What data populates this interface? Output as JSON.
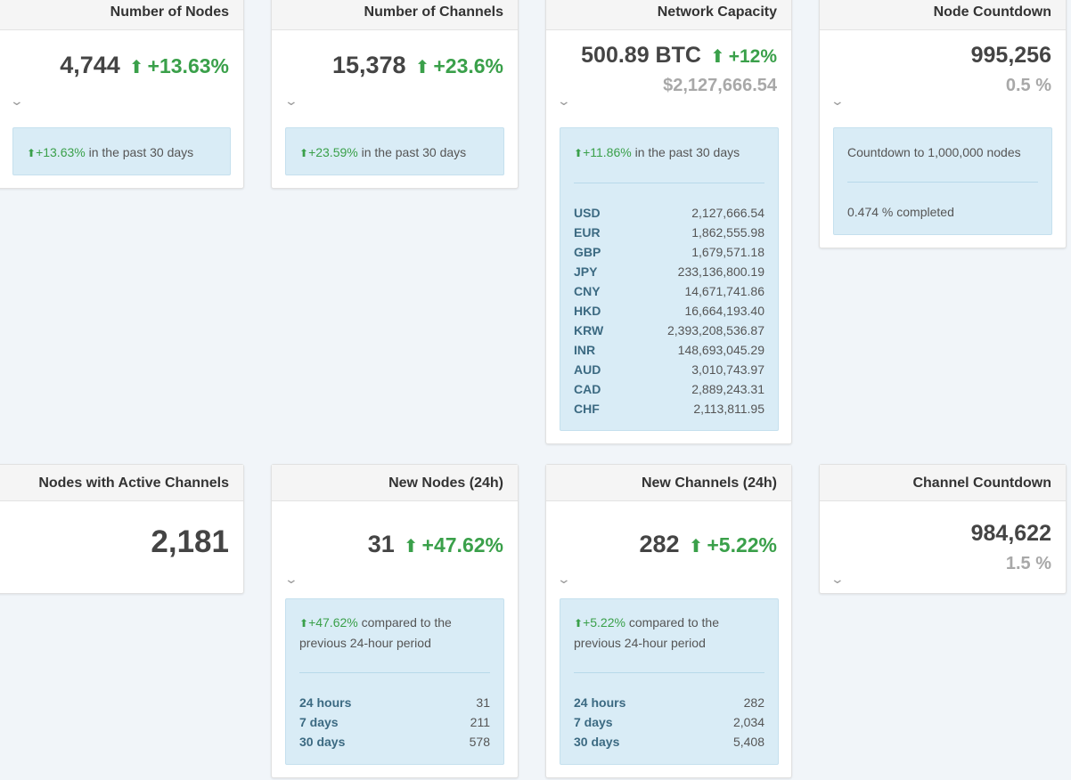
{
  "nodes": {
    "title": "Number of Nodes",
    "value": "4,744",
    "pct": "+13.63%",
    "info_pct": "+13.63%",
    "info_text": " in the past 30 days"
  },
  "channels": {
    "title": "Number of Channels",
    "value": "15,378",
    "pct": "+23.6%",
    "info_pct": "+23.59%",
    "info_text": " in the past 30 days"
  },
  "capacity": {
    "title": "Network Capacity",
    "value": "500.89 BTC",
    "pct": "+12%",
    "usd": "$2,127,666.54",
    "info_pct": "+11.86%",
    "info_text": " in the past 30 days",
    "currencies": [
      {
        "code": "USD",
        "value": "2,127,666.54"
      },
      {
        "code": "EUR",
        "value": "1,862,555.98"
      },
      {
        "code": "GBP",
        "value": "1,679,571.18"
      },
      {
        "code": "JPY",
        "value": "233,136,800.19"
      },
      {
        "code": "CNY",
        "value": "14,671,741.86"
      },
      {
        "code": "HKD",
        "value": "16,664,193.40"
      },
      {
        "code": "KRW",
        "value": "2,393,208,536.87"
      },
      {
        "code": "INR",
        "value": "148,693,045.29"
      },
      {
        "code": "AUD",
        "value": "3,010,743.97"
      },
      {
        "code": "CAD",
        "value": "2,889,243.31"
      },
      {
        "code": "CHF",
        "value": "2,113,811.95"
      }
    ]
  },
  "node_countdown": {
    "title": "Node Countdown",
    "value": "995,256",
    "pct": "0.5 %",
    "info_text": "Countdown to 1,000,000 nodes",
    "completed": "0.474 % completed"
  },
  "active_nodes": {
    "title": "Nodes with Active Channels",
    "value": "2,181"
  },
  "new_nodes": {
    "title": "New Nodes (24h)",
    "value": "31",
    "pct": "+47.62%",
    "info_pct": "+47.62%",
    "info_text1": " compared to the",
    "info_text2": "previous 24-hour period",
    "rows": [
      {
        "label": "24 hours",
        "value": "31"
      },
      {
        "label": "7 days",
        "value": "211"
      },
      {
        "label": "30 days",
        "value": "578"
      }
    ]
  },
  "new_channels": {
    "title": "New Channels (24h)",
    "value": "282",
    "pct": "+5.22%",
    "info_pct": "+5.22%",
    "info_text1": " compared to the",
    "info_text2": "previous 24-hour period",
    "rows": [
      {
        "label": "24 hours",
        "value": "282"
      },
      {
        "label": "7 days",
        "value": "2,034"
      },
      {
        "label": "30 days",
        "value": "5,408"
      }
    ]
  },
  "channel_countdown": {
    "title": "Channel Countdown",
    "value": "984,622",
    "pct": "1.5 %"
  },
  "colors": {
    "green": "#3aa04a",
    "info_bg": "#d9ecf6",
    "muted": "#a8a8a8"
  },
  "icons": {
    "up_arrow": "up-arrow-icon",
    "chevron": "chevron-down-icon"
  }
}
